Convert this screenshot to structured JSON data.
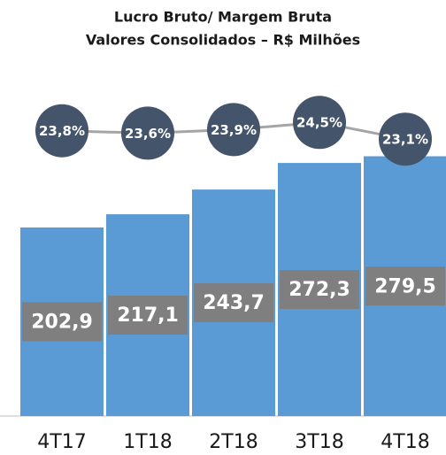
{
  "chart_data": {
    "type": "bar-line",
    "title": [
      "Lucro Bruto/ Margem Bruta",
      "Valores Consolidados – R$ Milhões"
    ],
    "categories": [
      "4T17",
      "1T18",
      "2T18",
      "3T18",
      "4T18"
    ],
    "series": [
      {
        "type": "bar",
        "color": "#5b9bd5",
        "values": [
          202.9,
          217.1,
          243.7,
          272.3,
          279.5
        ],
        "value_labels": [
          "202,9",
          "217,1",
          "243,7",
          "272,3",
          "279,5"
        ],
        "label_color": "#7f7f7f"
      },
      {
        "type": "line",
        "axis": "y2",
        "color": "#a5a5a5",
        "marker_color": "#44546a",
        "values": [
          23.8,
          23.6,
          23.9,
          24.5,
          23.1
        ],
        "value_labels": [
          "23,8%",
          "23,6%",
          "23,9%",
          "24,5%",
          "23,1%"
        ]
      }
    ],
    "ylim": [
      0,
      300
    ],
    "y2lim": [
      0,
      24
    ]
  }
}
